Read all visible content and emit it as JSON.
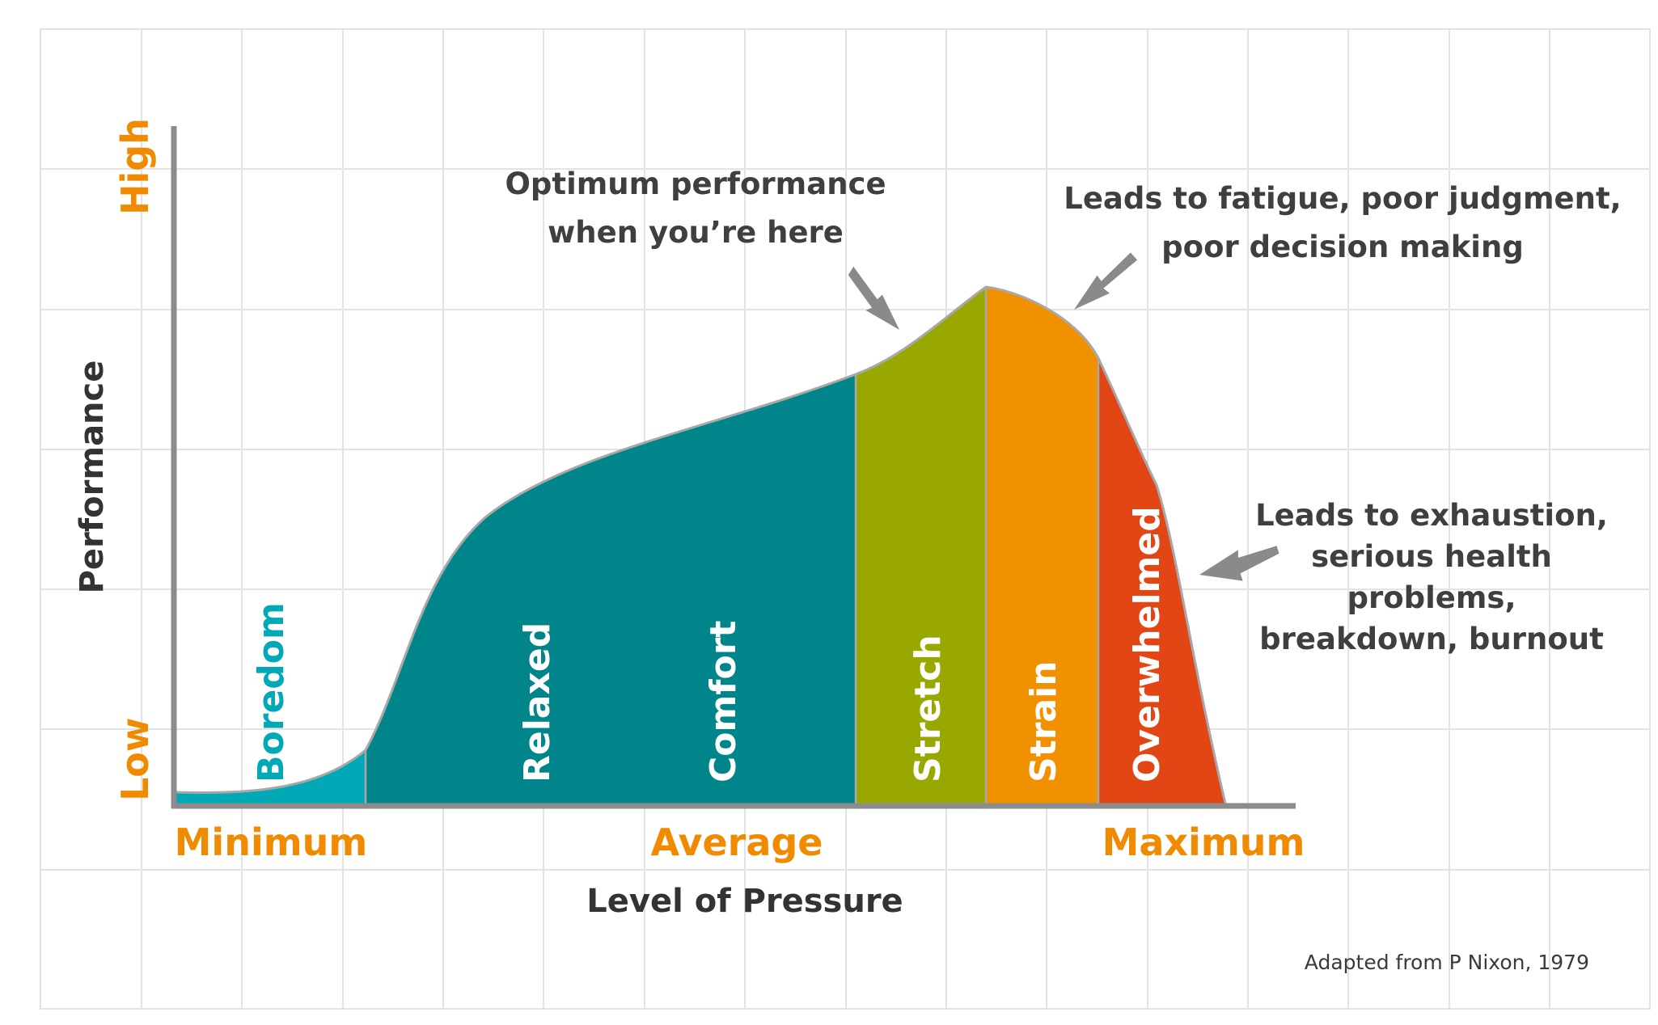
{
  "axes": {
    "y_title": "Performance",
    "y_low": "Low",
    "y_high": "High",
    "x_title": "Level of Pressure",
    "x_minimum": "Minimum",
    "x_average": "Average",
    "x_maximum": "Maximum"
  },
  "zones": [
    {
      "id": "boredom",
      "label": "Boredom",
      "color": "#00a9b5",
      "label_color": "#00a9b5"
    },
    {
      "id": "relaxed",
      "label": "Relaxed",
      "color": "#00868a",
      "label_color": "#ffffff"
    },
    {
      "id": "comfort",
      "label": "Comfort",
      "color": "#00868a",
      "label_color": "#ffffff"
    },
    {
      "id": "stretch",
      "label": "Stretch",
      "color": "#99a800",
      "label_color": "#ffffff"
    },
    {
      "id": "strain",
      "label": "Strain",
      "color": "#f29100",
      "label_color": "#ffffff"
    },
    {
      "id": "overwhelmed",
      "label": "Overwhelmed",
      "color": "#e24615",
      "label_color": "#ffffff"
    }
  ],
  "annotations": {
    "optimum": [
      "Optimum performance",
      "when you’re here"
    ],
    "fatigue": [
      "Leads to fatigue, poor judgment,",
      "poor decision making"
    ],
    "exhaustion": [
      "Leads to exhaustion,",
      "serious health",
      "problems,",
      "breakdown, burnout"
    ]
  },
  "credit": "Adapted from P Nixon, 1979",
  "colors": {
    "accent_orange": "#f08a00",
    "text_dark": "#333333",
    "arrow_gray": "#8a8a8a",
    "axis_gray": "#8c8c8c"
  }
}
